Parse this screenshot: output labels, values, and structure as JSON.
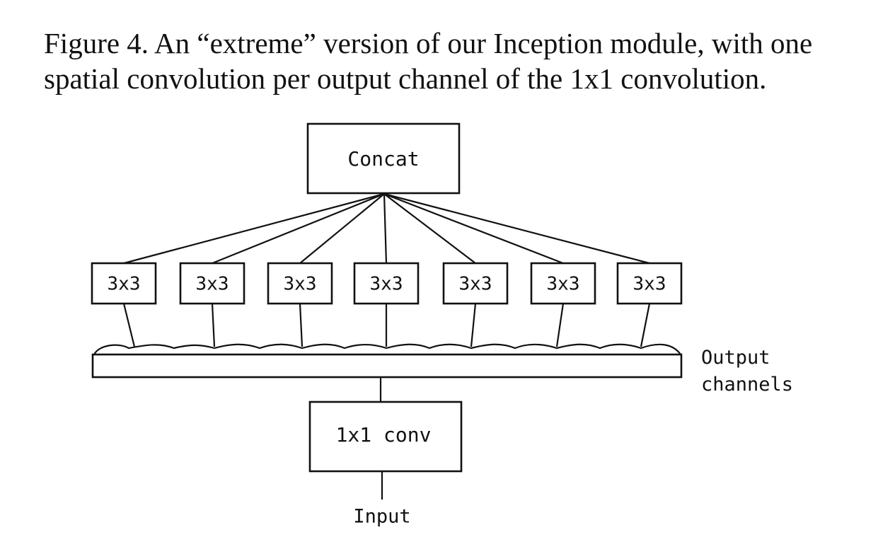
{
  "figure": {
    "caption_lines": [
      "Figure 4. An “extreme” version of our Inception module, with one",
      "spatial convolution per output channel of the 1x1 convolution."
    ],
    "nodes": {
      "concat": "Concat",
      "spatial_convs": [
        "3x3",
        "3x3",
        "3x3",
        "3x3",
        "3x3",
        "3x3",
        "3x3"
      ],
      "pointwise": "1x1 conv",
      "input": "Input",
      "channels_label_lines": [
        "Output",
        "channels"
      ]
    },
    "colors": {
      "ink": "#111111",
      "background": "#ffffff"
    }
  }
}
